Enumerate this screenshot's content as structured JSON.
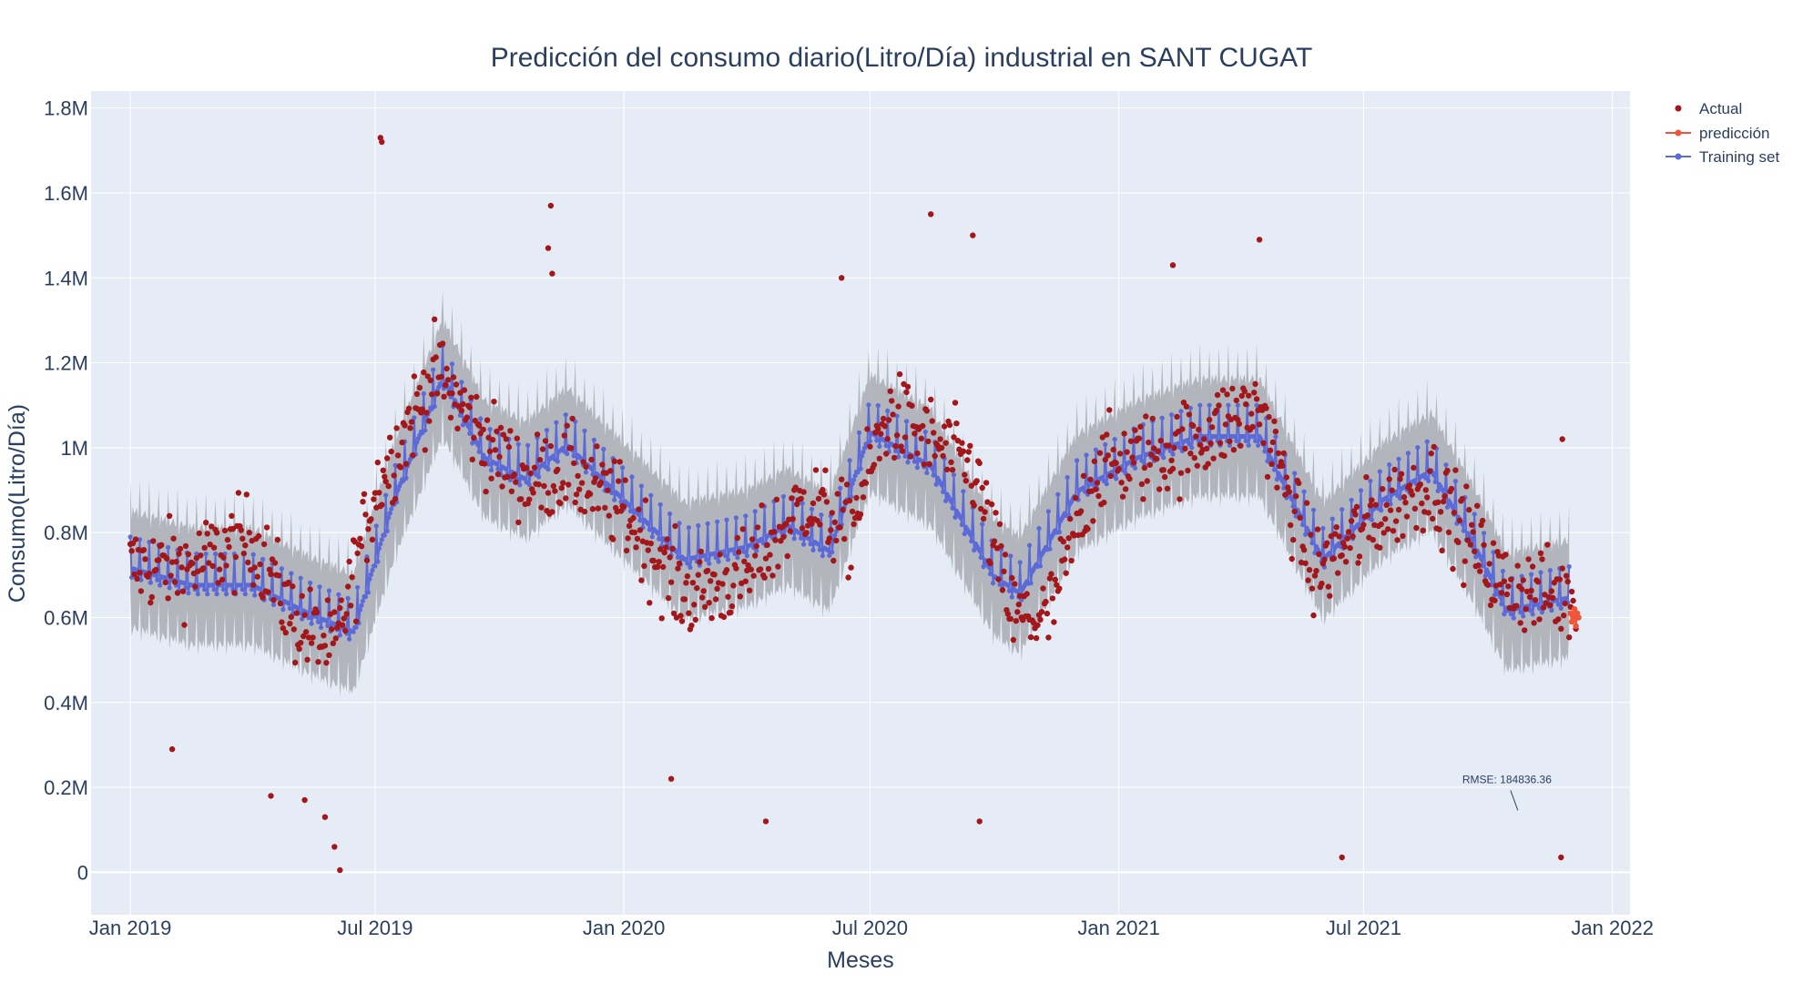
{
  "chart_data": {
    "type": "scatter",
    "title": "Predicción del consumo diario(Litro/Día) industrial en SANT CUGAT",
    "xlabel": "Meses",
    "ylabel": "Consumo(Litro/Día)",
    "x_range": [
      "2018-12-03",
      "2022-01-14"
    ],
    "y_range": [
      -100000,
      1840000
    ],
    "x_ticks": [
      {
        "date": "2019-01-01",
        "label": "Jan 2019"
      },
      {
        "date": "2019-07-01",
        "label": "Jul 2019"
      },
      {
        "date": "2020-01-01",
        "label": "Jan 2020"
      },
      {
        "date": "2020-07-01",
        "label": "Jul 2020"
      },
      {
        "date": "2021-01-01",
        "label": "Jan 2021"
      },
      {
        "date": "2021-07-01",
        "label": "Jul 2021"
      },
      {
        "date": "2022-01-01",
        "label": "Jan 2022"
      }
    ],
    "y_ticks": [
      {
        "value": 0,
        "label": "0"
      },
      {
        "value": 200000,
        "label": "0.2M"
      },
      {
        "value": 400000,
        "label": "0.4M"
      },
      {
        "value": 600000,
        "label": "0.6M"
      },
      {
        "value": 800000,
        "label": "0.8M"
      },
      {
        "value": 1000000,
        "label": "1M"
      },
      {
        "value": 1200000,
        "label": "1.2M"
      },
      {
        "value": 1400000,
        "label": "1.4M"
      },
      {
        "value": 1600000,
        "label": "1.6M"
      },
      {
        "value": 1800000,
        "label": "1.8M"
      }
    ],
    "grid": true,
    "legend_position": "top-right outside",
    "colors": {
      "actual": "#a3171b",
      "prediccion": "#ef553b",
      "training": "#5c6ad8",
      "band": "#a9acb2",
      "plot_bg": "#e5ecf6",
      "grid": "#ffffff"
    },
    "series": [
      {
        "name": "Actual",
        "mode": "markers",
        "x_start": "2019-01-01",
        "x_end": "2021-12-05",
        "note_trend_points": [
          [
            "2019-01-01",
            720000
          ],
          [
            "2019-02-15",
            720000
          ],
          [
            "2019-04-01",
            790000
          ],
          [
            "2019-05-01",
            600000
          ],
          [
            "2019-06-01",
            520000
          ],
          [
            "2019-07-01",
            900000
          ],
          [
            "2019-08-15",
            1180000
          ],
          [
            "2019-09-20",
            1020000
          ],
          [
            "2019-10-20",
            920000
          ],
          [
            "2019-11-20",
            950000
          ],
          [
            "2020-01-01",
            850000
          ],
          [
            "2020-02-15",
            650000
          ],
          [
            "2020-04-01",
            700000
          ],
          [
            "2020-05-15",
            880000
          ],
          [
            "2020-06-15",
            800000
          ],
          [
            "2020-07-15",
            1080000
          ],
          [
            "2020-09-15",
            950000
          ],
          [
            "2020-10-15",
            600000
          ],
          [
            "2020-11-10",
            600000
          ],
          [
            "2020-12-15",
            950000
          ],
          [
            "2021-02-15",
            1000000
          ],
          [
            "2021-04-15",
            1100000
          ],
          [
            "2021-05-25",
            700000
          ],
          [
            "2021-07-15",
            850000
          ],
          [
            "2021-08-20",
            920000
          ],
          [
            "2021-10-10",
            680000
          ],
          [
            "2021-12-05",
            640000
          ]
        ],
        "outliers": [
          [
            "2019-07-05",
            1730000
          ],
          [
            "2019-07-06",
            1720000
          ],
          [
            "2019-06-01",
            60000
          ],
          [
            "2019-06-05",
            5000
          ],
          [
            "2019-05-25",
            130000
          ],
          [
            "2019-05-10",
            170000
          ],
          [
            "2019-04-15",
            180000
          ],
          [
            "2019-11-08",
            1570000
          ],
          [
            "2019-11-06",
            1470000
          ],
          [
            "2019-11-09",
            1410000
          ],
          [
            "2020-02-05",
            220000
          ],
          [
            "2020-04-15",
            120000
          ],
          [
            "2020-08-15",
            1550000
          ],
          [
            "2020-09-15",
            1500000
          ],
          [
            "2020-09-20",
            120000
          ],
          [
            "2021-02-10",
            1430000
          ],
          [
            "2021-04-15",
            1490000
          ],
          [
            "2021-06-15",
            35000
          ],
          [
            "2021-11-24",
            35000
          ],
          [
            "2021-11-25",
            1020000
          ],
          [
            "2020-06-10",
            1400000
          ],
          [
            "2019-02-01",
            290000
          ]
        ]
      },
      {
        "name": "predicción",
        "mode": "lines+markers",
        "x_start": "2021-12-01",
        "x_end": "2021-12-07",
        "values": [
          610000,
          590000,
          600000,
          620000,
          580000,
          610000,
          600000
        ]
      },
      {
        "name": "Training set",
        "mode": "lines+markers",
        "x_start": "2019-01-01",
        "x_end": "2021-11-30",
        "trend_points": [
          [
            "2019-01-01",
            720000
          ],
          [
            "2019-02-15",
            680000
          ],
          [
            "2019-04-01",
            680000
          ],
          [
            "2019-05-15",
            610000
          ],
          [
            "2019-06-15",
            570000
          ],
          [
            "2019-07-15",
            880000
          ],
          [
            "2019-08-20",
            1170000
          ],
          [
            "2019-09-20",
            980000
          ],
          [
            "2019-10-20",
            930000
          ],
          [
            "2019-11-20",
            1010000
          ],
          [
            "2020-01-01",
            880000
          ],
          [
            "2020-02-15",
            740000
          ],
          [
            "2020-04-01",
            770000
          ],
          [
            "2020-05-01",
            820000
          ],
          [
            "2020-06-01",
            760000
          ],
          [
            "2020-07-01",
            1040000
          ],
          [
            "2020-08-15",
            960000
          ],
          [
            "2020-10-01",
            700000
          ],
          [
            "2020-10-20",
            660000
          ],
          [
            "2020-12-01",
            900000
          ],
          [
            "2021-01-15",
            980000
          ],
          [
            "2021-03-01",
            1030000
          ],
          [
            "2021-04-15",
            1030000
          ],
          [
            "2021-06-01",
            740000
          ],
          [
            "2021-07-15",
            880000
          ],
          [
            "2021-08-20",
            950000
          ],
          [
            "2021-09-20",
            780000
          ],
          [
            "2021-10-15",
            620000
          ],
          [
            "2021-11-30",
            650000
          ]
        ],
        "weekly_amplitude": 70000,
        "band_halfwidth": 130000
      }
    ],
    "annotations": [
      {
        "text": "RMSE: 184836.36",
        "x": "2021-10-15",
        "y": 150000
      }
    ]
  }
}
